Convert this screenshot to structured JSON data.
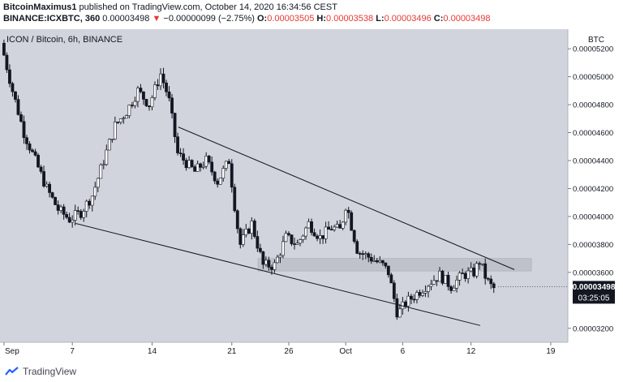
{
  "header": {
    "author": "BitcoinMaximus1",
    "published_text": "published on TradingView.com, October 14, 2020 16:34:56 CEST",
    "symbol": "BINANCE:ICXBTC, 360",
    "last": "0.00003498",
    "change_arrow": "▼",
    "change": "−0.00000099 (−2.75%)",
    "o_label": "O:",
    "o_value": "0.00003505",
    "h_label": "H:",
    "h_value": "0.00003538",
    "l_label": "L:",
    "l_value": "0.00003496",
    "c_label": "C:",
    "c_value": "0.00003498"
  },
  "footer": {
    "brand": "TradingView"
  },
  "colors": {
    "plot_bg": "#d1d4dc",
    "candle": "#131722",
    "up_body": "#ffffff",
    "down_body": "#131722",
    "zone": "#bfc2ca",
    "trendline": "#131722",
    "price_tag_bg": "#131722",
    "price_tag_text": "#ffffff",
    "header_red": "#e53935"
  },
  "chart_data": {
    "type": "candlestick",
    "title": "ICON / Bitcoin, 6h, BINANCE",
    "currency_label": "BTC",
    "y_range": [
      3.1e-05,
      5.34e-05
    ],
    "y_ticks": [
      "0.00005200",
      "0.00005000",
      "0.00004800",
      "0.00004600",
      "0.00004400",
      "0.00004200",
      "0.00004000",
      "0.00003800",
      "0.00003600",
      "0.00003200"
    ],
    "x_ticks": [
      {
        "label": "Sep",
        "d": 0
      },
      {
        "label": "7",
        "d": 6
      },
      {
        "label": "14",
        "d": 13
      },
      {
        "label": "21",
        "d": 20
      },
      {
        "label": "26",
        "d": 25
      },
      {
        "label": "Oct",
        "d": 30
      },
      {
        "label": "6",
        "d": 35
      },
      {
        "label": "12",
        "d": 41
      },
      {
        "label": "19",
        "d": 48
      }
    ],
    "x_domain_days": [
      -0.35,
      49.5
    ],
    "last_price": "0.00003498",
    "countdown": "03:25:05",
    "anchors": [
      [
        0,
        5.24e-05
      ],
      [
        1,
        4.9e-05
      ],
      [
        2,
        4.6e-05
      ],
      [
        3,
        4.4e-05
      ],
      [
        4,
        4.2e-05
      ],
      [
        5,
        4.05e-05
      ],
      [
        6,
        3.98e-05
      ],
      [
        7,
        4.03e-05
      ],
      [
        8,
        4.15e-05
      ],
      [
        9,
        4.4e-05
      ],
      [
        10,
        4.65e-05
      ],
      [
        11,
        4.75e-05
      ],
      [
        12,
        4.9e-05
      ],
      [
        13,
        4.8e-05
      ],
      [
        14,
        5.02e-05
      ],
      [
        14.7,
        4.85e-05
      ],
      [
        15.5,
        4.45e-05
      ],
      [
        17,
        4.32e-05
      ],
      [
        18,
        4.4e-05
      ],
      [
        19,
        4.25e-05
      ],
      [
        20,
        4.4e-05
      ],
      [
        20.7,
        3.95e-05
      ],
      [
        21,
        3.8e-05
      ],
      [
        22,
        3.95e-05
      ],
      [
        23,
        3.65e-05
      ],
      [
        24,
        3.65e-05
      ],
      [
        25,
        3.85e-05
      ],
      [
        26,
        3.8e-05
      ],
      [
        27,
        3.95e-05
      ],
      [
        28,
        3.85e-05
      ],
      [
        29,
        3.92e-05
      ],
      [
        29.8,
        3.9e-05
      ],
      [
        30.3,
        4.1e-05
      ],
      [
        30.7,
        3.95e-05
      ],
      [
        31.3,
        3.75e-05
      ],
      [
        32.5,
        3.7e-05
      ],
      [
        33.5,
        3.65e-05
      ],
      [
        34,
        3.6e-05
      ],
      [
        34.8,
        3.3e-05
      ],
      [
        35.5,
        3.38e-05
      ],
      [
        36.5,
        3.45e-05
      ],
      [
        37.5,
        3.52e-05
      ],
      [
        38.5,
        3.58e-05
      ],
      [
        39.5,
        3.5e-05
      ],
      [
        40.5,
        3.58e-05
      ],
      [
        41.5,
        3.6e-05
      ],
      [
        42,
        3.68e-05
      ],
      [
        42.6,
        3.55e-05
      ],
      [
        43.1,
        3.49e-05
      ]
    ],
    "resistance_zone": [
      3.61e-05,
      3.7e-05
    ],
    "trendlines": [
      {
        "name": "upper",
        "from": [
          15.3,
          4.64e-05
        ],
        "to": [
          44.8,
          3.62e-05
        ]
      },
      {
        "name": "lower",
        "from": [
          6.3,
          3.95e-05
        ],
        "to": [
          41.8,
          3.22e-05
        ]
      }
    ]
  }
}
